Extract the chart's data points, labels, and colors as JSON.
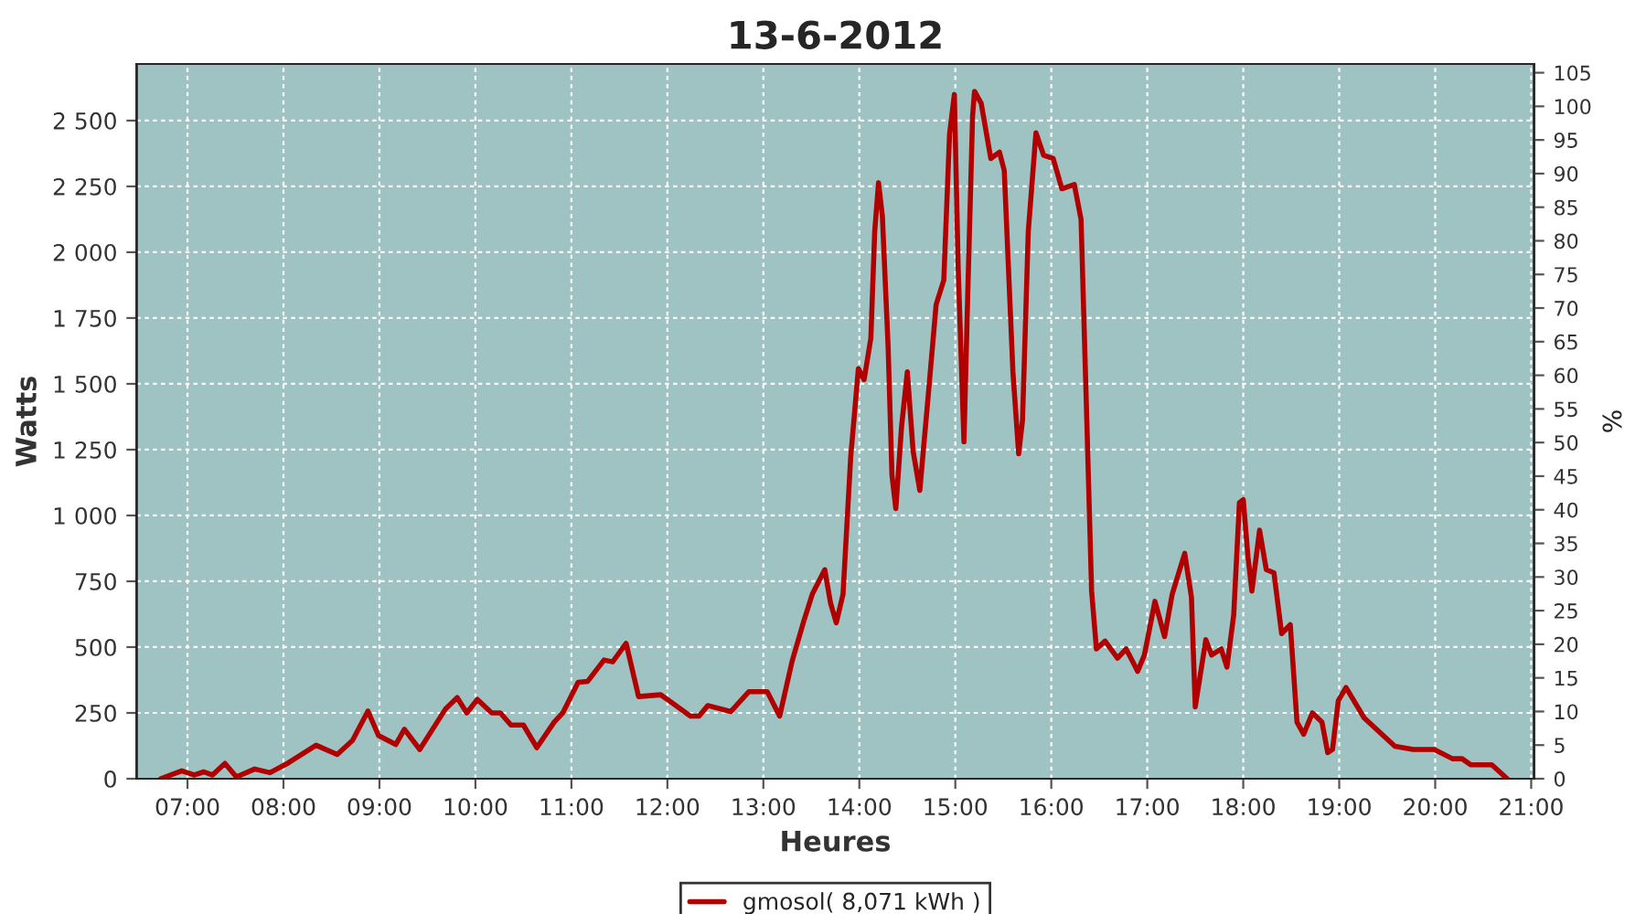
{
  "chart_data": {
    "type": "line",
    "title": "13-6-2012",
    "xlabel": "Heures",
    "ylabel": "Watts",
    "y2label": "%",
    "xlim": [
      6.47,
      21.03
    ],
    "ylim": [
      0,
      2715
    ],
    "y2lim": [
      0,
      106.3
    ],
    "xticks": [
      {
        "value": 7,
        "label": "07:00"
      },
      {
        "value": 8,
        "label": "08:00"
      },
      {
        "value": 9,
        "label": "09:00"
      },
      {
        "value": 10,
        "label": "10:00"
      },
      {
        "value": 11,
        "label": "11:00"
      },
      {
        "value": 12,
        "label": "12:00"
      },
      {
        "value": 13,
        "label": "13:00"
      },
      {
        "value": 14,
        "label": "14:00"
      },
      {
        "value": 15,
        "label": "15:00"
      },
      {
        "value": 16,
        "label": "16:00"
      },
      {
        "value": 17,
        "label": "17:00"
      },
      {
        "value": 18,
        "label": "18:00"
      },
      {
        "value": 19,
        "label": "19:00"
      },
      {
        "value": 20,
        "label": "20:00"
      },
      {
        "value": 21,
        "label": "21:00"
      }
    ],
    "yticks": [
      0,
      250,
      500,
      750,
      {
        "value": 1000,
        "label": "1 000"
      },
      {
        "value": 1250,
        "label": "1 250"
      },
      {
        "value": 1500,
        "label": "1 500"
      },
      {
        "value": 1750,
        "label": "1 750"
      },
      {
        "value": 2000,
        "label": "2 000"
      },
      {
        "value": 2250,
        "label": "2 250"
      },
      {
        "value": 2500,
        "label": "2 500"
      }
    ],
    "y2ticks": [
      0,
      5,
      10,
      15,
      20,
      25,
      30,
      35,
      40,
      45,
      50,
      55,
      60,
      65,
      70,
      75,
      80,
      85,
      90,
      95,
      100,
      105
    ],
    "grid": true,
    "legend": "bottom",
    "line_style": "solid",
    "marker": "none",
    "series": [
      {
        "name": "gmosol( 8,071 kWh )",
        "color": "#b00000",
        "x": [
          6.72,
          6.94,
          7.07,
          7.17,
          7.26,
          7.39,
          7.51,
          7.7,
          7.86,
          8.05,
          8.34,
          8.56,
          8.72,
          8.88,
          8.99,
          9.17,
          9.26,
          9.42,
          9.69,
          9.81,
          9.91,
          10.02,
          10.17,
          10.26,
          10.37,
          10.5,
          10.64,
          10.82,
          10.91,
          11.07,
          11.17,
          11.34,
          11.43,
          11.57,
          11.7,
          11.93,
          12.02,
          12.24,
          12.33,
          12.42,
          12.66,
          12.85,
          13.04,
          13.17,
          13.3,
          13.42,
          13.51,
          13.64,
          13.7,
          13.76,
          13.83,
          13.91,
          13.99,
          14.05,
          14.12,
          14.16,
          14.2,
          14.24,
          14.3,
          14.34,
          14.38,
          14.44,
          14.5,
          14.56,
          14.63,
          14.72,
          14.8,
          14.88,
          14.94,
          14.99,
          15.03,
          15.09,
          15.13,
          15.18,
          15.2,
          15.27,
          15.37,
          15.46,
          15.51,
          15.6,
          15.66,
          15.7,
          15.76,
          15.84,
          15.92,
          16.02,
          16.11,
          16.24,
          16.31,
          16.37,
          16.42,
          16.47,
          16.56,
          16.69,
          16.78,
          16.9,
          16.97,
          17.08,
          17.18,
          17.26,
          17.39,
          17.46,
          17.5,
          17.61,
          17.67,
          17.77,
          17.83,
          17.9,
          17.96,
          18.0,
          18.05,
          18.09,
          18.17,
          18.24,
          18.32,
          18.4,
          18.49,
          18.56,
          18.63,
          18.72,
          18.82,
          18.88,
          18.93,
          18.99,
          19.07,
          19.26,
          19.58,
          19.77,
          19.99,
          20.18,
          20.28,
          20.37,
          20.59,
          20.75
        ],
        "values": [
          0,
          30,
          14,
          26,
          14,
          58,
          7,
          37,
          23,
          60,
          127,
          92,
          146,
          257,
          164,
          130,
          188,
          111,
          266,
          308,
          250,
          301,
          250,
          250,
          204,
          204,
          118,
          215,
          250,
          366,
          370,
          451,
          444,
          514,
          312,
          319,
          296,
          238,
          238,
          278,
          255,
          331,
          331,
          238,
          447,
          597,
          701,
          794,
          667,
          592,
          701,
          1222,
          1558,
          1516,
          1674,
          2078,
          2264,
          2137,
          1639,
          1153,
          1026,
          1338,
          1546,
          1245,
          1095,
          1465,
          1801,
          1894,
          2449,
          2599,
          1940,
          1280,
          1847,
          2518,
          2611,
          2565,
          2356,
          2380,
          2310,
          1546,
          1234,
          1361,
          2078,
          2454,
          2368,
          2356,
          2241,
          2257,
          2125,
          1361,
          713,
          493,
          523,
          458,
          493,
          408,
          470,
          674,
          540,
          701,
          856,
          690,
          273,
          528,
          470,
          493,
          424,
          620,
          1049,
          1060,
          840,
          713,
          944,
          794,
          782,
          551,
          585,
          215,
          169,
          250,
          215,
          99,
          111,
          296,
          347,
          231,
          123,
          111,
          111,
          76,
          76,
          53,
          53,
          0
        ]
      }
    ]
  }
}
